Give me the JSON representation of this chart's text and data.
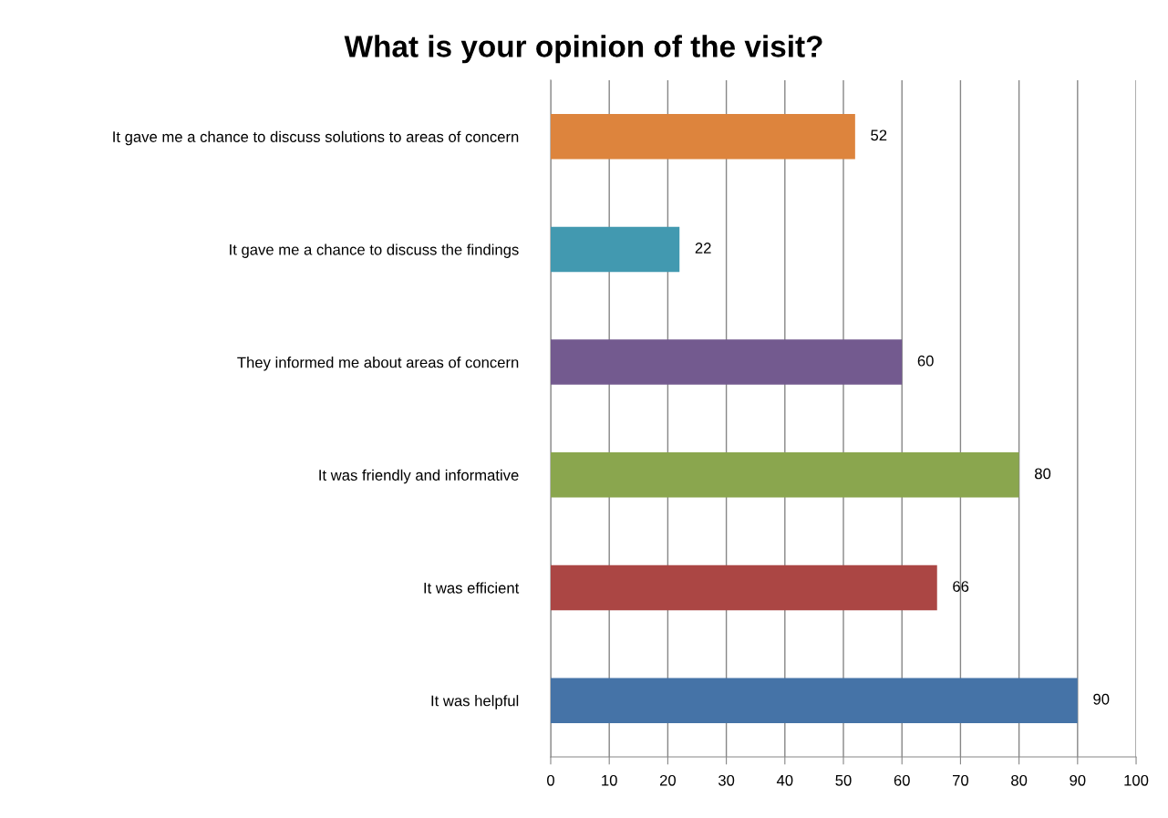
{
  "chart_data": {
    "type": "bar",
    "orientation": "horizontal",
    "title": "What is your opinion of the visit?",
    "categories": [
      "It gave me a chance to discuss solutions to areas of concern",
      "It gave me a chance to discuss the findings",
      "They informed me about areas of concern",
      "It was friendly and informative",
      "It was efficient",
      "It was helpful"
    ],
    "values": [
      52,
      22,
      60,
      80,
      66,
      90
    ],
    "colors": [
      "#dd843d",
      "#4299b0",
      "#735a8f",
      "#8aa64e",
      "#ab4644",
      "#4573a7"
    ],
    "xlim": [
      0,
      100
    ],
    "xticks": [
      0,
      10,
      20,
      30,
      40,
      50,
      60,
      70,
      80,
      90,
      100
    ],
    "grid": "x",
    "data_labels": true,
    "legend": false
  }
}
